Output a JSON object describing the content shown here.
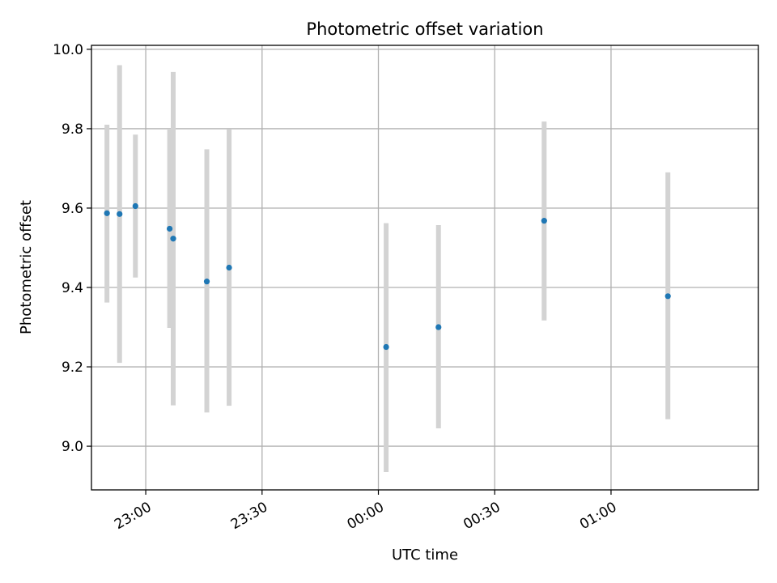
{
  "chart_data": {
    "type": "scatter",
    "title": "Photometric offset variation",
    "xlabel": "UTC time",
    "ylabel": "Photometric offset",
    "x_is_time": true,
    "x_date_start": "2000-01-01",
    "xlim": [
      "22:46:00",
      "01:38:00"
    ],
    "ylim": [
      8.89,
      10.01
    ],
    "yticks": [
      9.0,
      9.2,
      9.4,
      9.6,
      9.8,
      10.0
    ],
    "ytick_labels": [
      "9.0",
      "9.2",
      "9.4",
      "9.6",
      "9.8",
      "10.0"
    ],
    "xticks": [
      "23:00",
      "23:30",
      "00:00",
      "00:30",
      "01:00"
    ],
    "grid": true,
    "marker_color": "#1f77b4",
    "errorbar_color": "#d3d3d3",
    "points": [
      {
        "t": "22:50:00",
        "y": 9.587,
        "low": 9.362,
        "high": 9.81
      },
      {
        "t": "22:53:15",
        "y": 9.585,
        "low": 9.21,
        "high": 9.96
      },
      {
        "t": "22:57:20",
        "y": 9.605,
        "low": 9.425,
        "high": 9.785
      },
      {
        "t": "23:06:10",
        "y": 9.548,
        "low": 9.298,
        "high": 9.8
      },
      {
        "t": "23:07:05",
        "y": 9.523,
        "low": 9.103,
        "high": 9.943
      },
      {
        "t": "23:15:45",
        "y": 9.415,
        "low": 9.085,
        "high": 9.748
      },
      {
        "t": "23:21:30",
        "y": 9.45,
        "low": 9.102,
        "high": 9.798
      },
      {
        "t": "00:02:00",
        "y": 9.25,
        "low": 8.935,
        "high": 9.562
      },
      {
        "t": "00:15:30",
        "y": 9.3,
        "low": 9.045,
        "high": 9.557
      },
      {
        "t": "00:42:45",
        "y": 9.568,
        "low": 9.317,
        "high": 9.818
      },
      {
        "t": "01:14:40",
        "y": 9.378,
        "low": 9.068,
        "high": 9.69
      }
    ]
  }
}
